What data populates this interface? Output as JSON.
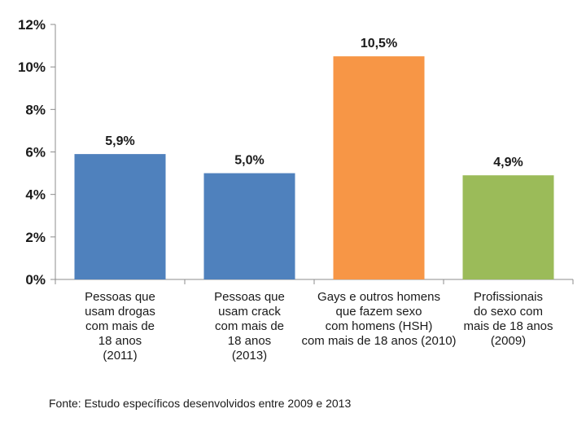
{
  "chart_data": {
    "type": "bar",
    "categories": [
      "Pessoas que\nusam drogas\ncom mais de\n18 anos\n(2011)",
      "Pessoas que\nusam crack\ncom mais de\n18 anos\n(2013)",
      "Gays e outros homens\nque fazem sexo\ncom homens (HSH)\ncom mais de 18 anos (2010)",
      "Profissionais\ndo sexo com\nmais de 18 anos\n(2009)"
    ],
    "values": [
      5.9,
      5.0,
      10.5,
      4.9
    ],
    "data_labels": [
      "5,9%",
      "5,0%",
      "10,5%",
      "4,9%"
    ],
    "bar_colors": [
      "#4f81bd",
      "#4f81bd",
      "#f79646",
      "#9bbb59"
    ],
    "ylim": [
      0,
      12
    ],
    "yticks": [
      0,
      2,
      4,
      6,
      8,
      10,
      12
    ],
    "ytick_labels": [
      "0%",
      "2%",
      "4%",
      "6%",
      "8%",
      "10%",
      "12%"
    ],
    "grid": false,
    "legend": "none"
  },
  "source_note": "Fonte: Estudo específicos desenvolvidos entre 2009 e 2013"
}
